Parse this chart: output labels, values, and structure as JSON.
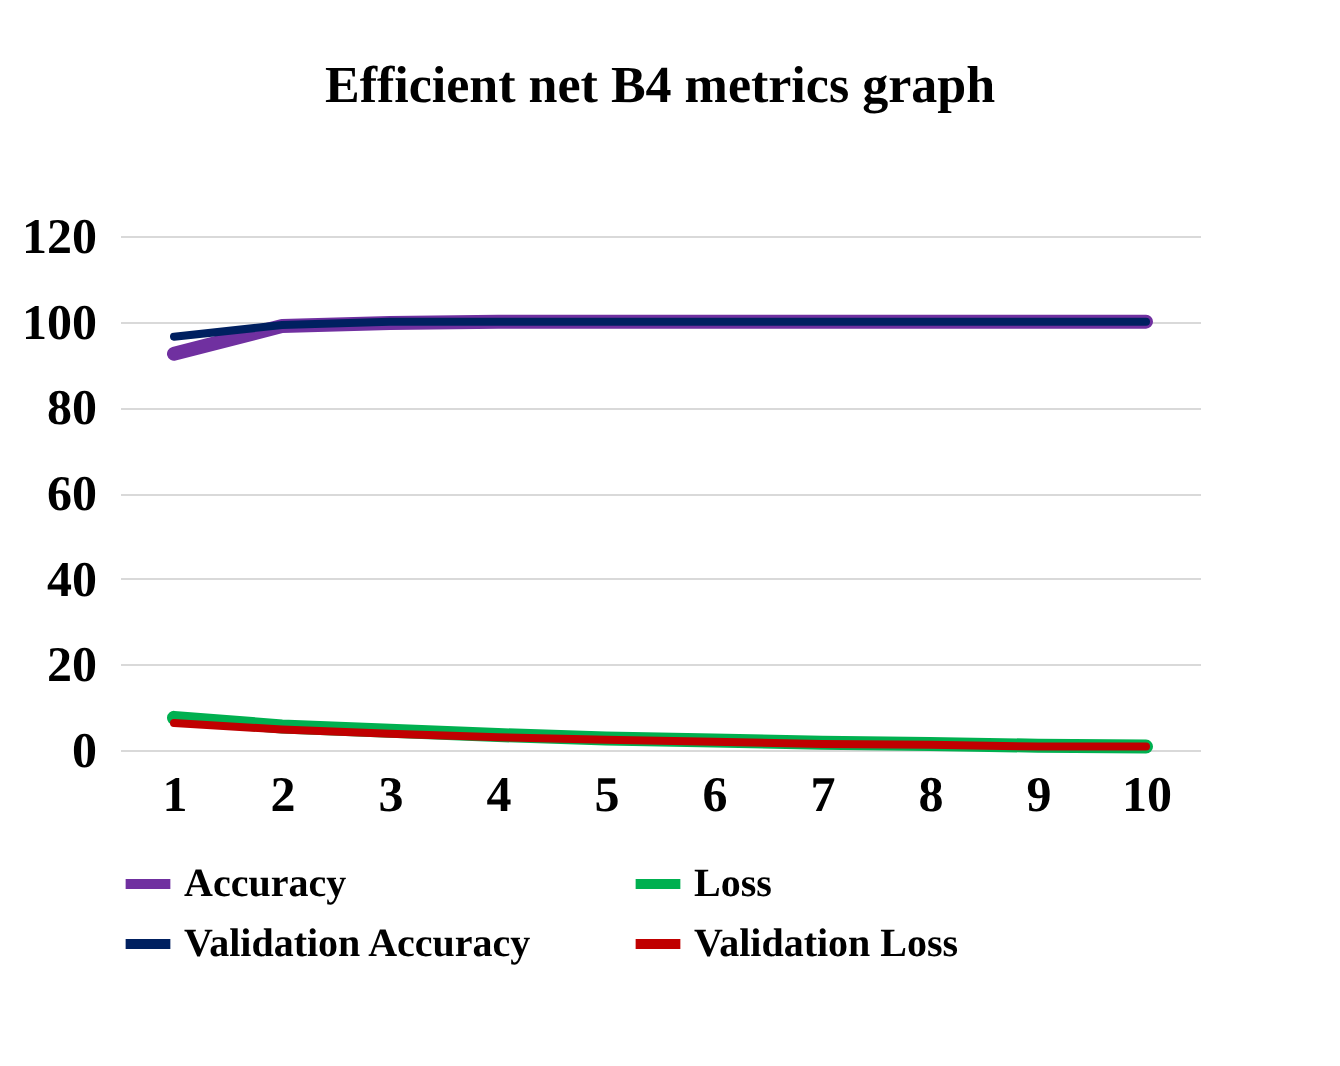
{
  "chart_data": {
    "type": "line",
    "title": "Efficient net B4 metrics graph",
    "categories": [
      "1",
      "2",
      "3",
      "4",
      "5",
      "6",
      "7",
      "8",
      "9",
      "10"
    ],
    "series": [
      {
        "name": "Accuracy",
        "color": "#7030a0",
        "values": [
          92.5,
          99,
          99.7,
          100,
          100,
          100,
          100,
          100,
          100,
          100
        ]
      },
      {
        "name": "Loss",
        "color": "#00b050",
        "values": [
          7.5,
          5.5,
          4.5,
          3.5,
          2.7,
          2.2,
          1.7,
          1.4,
          1,
          0.8
        ]
      },
      {
        "name": "Validation Accuracy",
        "color": "#002060",
        "values": [
          96.5,
          99.2,
          100,
          100,
          100,
          100,
          100,
          100,
          100,
          100
        ]
      },
      {
        "name": "Validation Loss",
        "color": "#c00000",
        "values": [
          6.3,
          4.8,
          3.8,
          3,
          2.4,
          1.9,
          1.4,
          1.2,
          0.8,
          0.8
        ]
      }
    ],
    "ylim": [
      0,
      120
    ],
    "yticks": [
      0,
      20,
      40,
      60,
      80,
      100,
      120
    ],
    "grid": "y",
    "legend": "bottom",
    "line_style": "solid",
    "marker": "none"
  }
}
